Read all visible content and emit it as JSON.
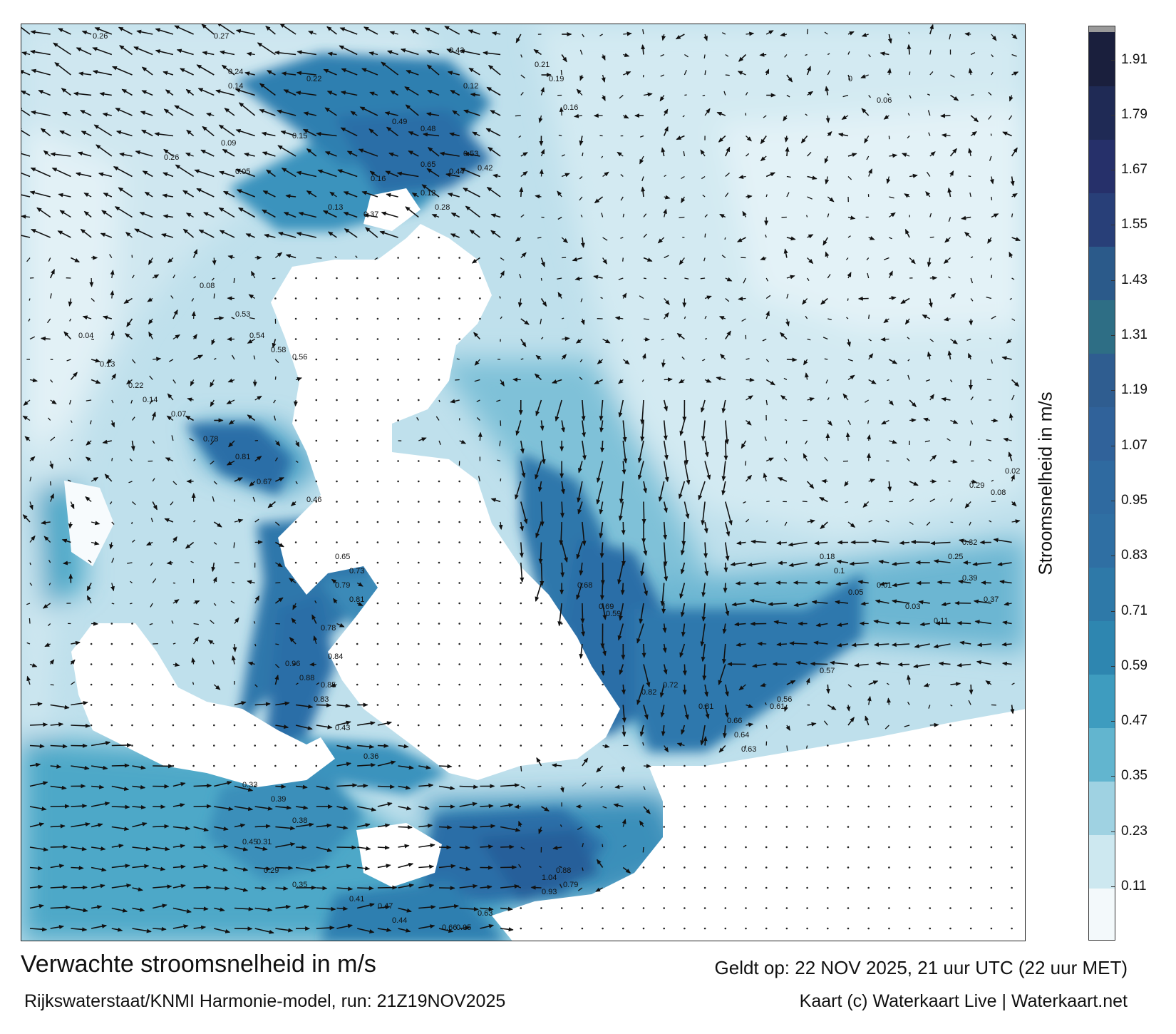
{
  "title": "Verwachte stroomsnelheid in m/s",
  "valid_time": "Geldt op: 22 NOV 2025, 21 uur UTC (22 uur MET)",
  "model_run": "Rijkswaterstaat/KNMI Harmonie-model, run: 21Z19NOV2025",
  "credit": "Kaart (c) Waterkaart Live | Waterkaart.net",
  "legend": {
    "title": "Stroomsnelheid in m/s",
    "ticks": [
      "0.11",
      "0.23",
      "0.35",
      "0.47",
      "0.59",
      "0.71",
      "0.83",
      "0.95",
      "1.07",
      "1.19",
      "1.31",
      "1.43",
      "1.55",
      "1.67",
      "1.79",
      "1.91"
    ],
    "colors": [
      "#f3f9fb",
      "#cde8f0",
      "#9fd2e2",
      "#62b5cf",
      "#3e9cbf",
      "#2e86b0",
      "#2e79a8",
      "#2f6fa3",
      "#2f6aa0",
      "#30629a",
      "#2f5d90",
      "#2e6e85",
      "#2b5a8a",
      "#283f78",
      "#26306a",
      "#1f2a55",
      "#1a1f3d",
      "#9a9a9a"
    ]
  },
  "speed_labels": [
    {
      "t": "0.26"
    },
    {
      "t": "0.27"
    },
    {
      "t": "0.22"
    },
    {
      "t": "0.24"
    },
    {
      "t": "0.14"
    },
    {
      "t": "0.15"
    },
    {
      "t": "0.16"
    },
    {
      "t": "0.13"
    },
    {
      "t": "0.12"
    },
    {
      "t": "0.43"
    },
    {
      "t": "0.49"
    },
    {
      "t": "0.48"
    },
    {
      "t": "0.12"
    },
    {
      "t": "0.21"
    },
    {
      "t": "0.19"
    },
    {
      "t": "0.16"
    },
    {
      "t": "0.26"
    },
    {
      "t": "0.09"
    },
    {
      "t": "0.05"
    },
    {
      "t": "0.65"
    },
    {
      "t": "0.53"
    },
    {
      "t": "0.44"
    },
    {
      "t": "0.42"
    },
    {
      "t": "0.37"
    },
    {
      "t": "0.28"
    },
    {
      "t": "0.08"
    },
    {
      "t": "0.53"
    },
    {
      "t": "0.54"
    },
    {
      "t": "0.58"
    },
    {
      "t": "0.56"
    },
    {
      "t": "0.04"
    },
    {
      "t": "0.13"
    },
    {
      "t": "0.22"
    },
    {
      "t": "0.14"
    },
    {
      "t": "0.07"
    },
    {
      "t": "0.78"
    },
    {
      "t": "0.81"
    },
    {
      "t": "0.67"
    },
    {
      "t": "0.46"
    },
    {
      "t": "0.65"
    },
    {
      "t": "0.73"
    },
    {
      "t": "0.79"
    },
    {
      "t": "0.81"
    },
    {
      "t": "0.78"
    },
    {
      "t": "0.84"
    },
    {
      "t": "0.96"
    },
    {
      "t": "0.88"
    },
    {
      "t": "0.85"
    },
    {
      "t": "0.83"
    },
    {
      "t": "0.68"
    },
    {
      "t": "0.69"
    },
    {
      "t": "0.59"
    },
    {
      "t": "0.82"
    },
    {
      "t": "0.72"
    },
    {
      "t": "0.81"
    },
    {
      "t": "0.66"
    },
    {
      "t": "0.64"
    },
    {
      "t": "0.63"
    },
    {
      "t": "0.61"
    },
    {
      "t": "0.56"
    },
    {
      "t": "0.57"
    },
    {
      "t": "0.88"
    },
    {
      "t": "0.79"
    },
    {
      "t": "0.93"
    },
    {
      "t": "1.04"
    },
    {
      "t": "0.95"
    },
    {
      "t": "0.63"
    },
    {
      "t": "0.66"
    },
    {
      "t": "0.45"
    },
    {
      "t": "0.43"
    },
    {
      "t": "0.36"
    },
    {
      "t": "0.33"
    },
    {
      "t": "0.39"
    },
    {
      "t": "0.38"
    },
    {
      "t": "0.31"
    },
    {
      "t": "0.29"
    },
    {
      "t": "0.35"
    },
    {
      "t": "0.41"
    },
    {
      "t": "0.47"
    },
    {
      "t": "0.44"
    },
    {
      "t": "0.39"
    },
    {
      "t": "0.37"
    },
    {
      "t": "0.18"
    },
    {
      "t": "0.1"
    },
    {
      "t": "0.05"
    },
    {
      "t": "0.01"
    },
    {
      "t": "0.03"
    },
    {
      "t": "0.11"
    },
    {
      "t": "0.25"
    },
    {
      "t": "0.32"
    },
    {
      "t": "0.29"
    },
    {
      "t": "0.08"
    },
    {
      "t": "0.02"
    },
    {
      "t": "0"
    },
    {
      "t": "0.06"
    }
  ]
}
